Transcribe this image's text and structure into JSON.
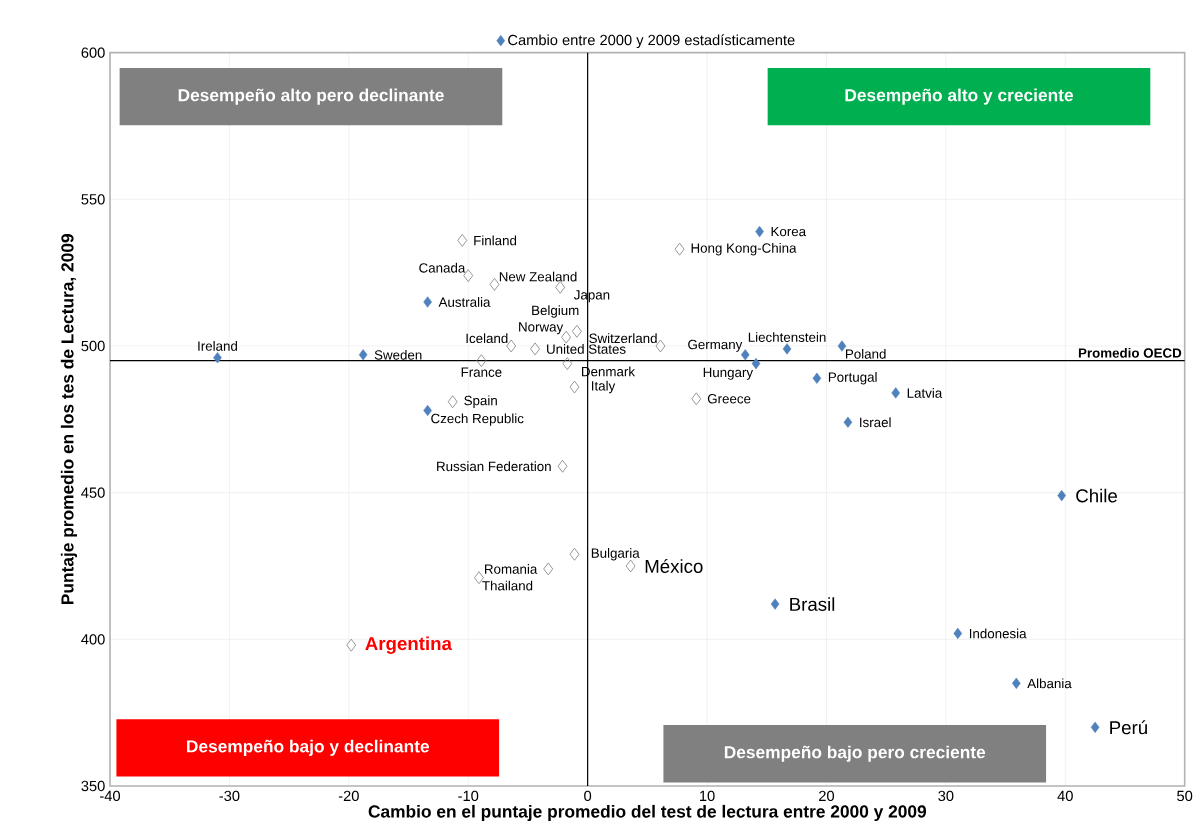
{
  "chart_data": {
    "type": "scatter",
    "xlabel": "Cambio en el puntaje promedio del test de lectura entre 2000 y 2009",
    "ylabel": "Puntaje promedio en los tes de Lectura, 2009",
    "series": [
      {
        "name": "Cambio entre 2000 y 2009 estadísticamente",
        "color": "#4f81bd",
        "x": [
          -31,
          -18.8,
          -13.4,
          -13.4,
          14.4,
          13.2,
          14.1,
          16.7,
          21.3,
          19.2,
          25.8,
          21.8,
          39.7,
          15.7,
          31.0,
          35.9,
          42.5
        ],
        "values": [
          496,
          497,
          515,
          478,
          539,
          497,
          494,
          499,
          500,
          489,
          484,
          474,
          449,
          412,
          402,
          385,
          370
        ]
      },
      {
        "color": "#7f7f7f",
        "x": [
          -10.5,
          -10.0,
          -7.8,
          -2.3,
          -0.9,
          -1.8,
          -6.4,
          -4.4,
          -8.9,
          -1.7,
          -1.1,
          -11.3,
          6.1,
          7.7,
          9.1,
          -2.1,
          -3.3,
          -1.1,
          -9.1,
          3.6,
          -19.8
        ],
        "values": [
          536,
          524,
          521,
          520,
          505,
          503,
          500,
          499,
          495,
          494,
          486,
          481,
          500,
          533,
          482,
          459,
          424,
          429,
          421,
          425,
          398
        ]
      }
    ],
    "xlim": [
      -40,
      50
    ],
    "xticks": [
      -40,
      -30,
      -20,
      -10,
      0,
      10,
      20,
      30,
      40,
      50
    ],
    "ylim": [
      350,
      600
    ],
    "yticks": [
      350,
      400,
      450,
      500,
      550,
      600
    ],
    "grid": true,
    "legend": "top",
    "marker": "diamond",
    "ref_lines": [
      {
        "axis": "x",
        "value": 0
      },
      {
        "axis": "y",
        "value": 495,
        "label": "Promedio OECD"
      }
    ],
    "annotations": [
      "Desempeño alto pero declinante",
      "Desempeño alto y creciente",
      "Desempeño bajo y declinante",
      "Desempeño bajo pero creciente",
      {
        "text": "Ireland",
        "x": -31,
        "y": 496
      },
      {
        "text": "Sweden",
        "x": -18.8,
        "y": 497
      },
      {
        "text": "Australia",
        "x": -13.4,
        "y": 515
      },
      {
        "text": "Czech Republic",
        "x": -13.4,
        "y": 478
      },
      {
        "text": "Korea",
        "x": 14.4,
        "y": 539
      },
      {
        "text": "Germany",
        "x": 13.2,
        "y": 497
      },
      {
        "text": "Hungary",
        "x": 14.1,
        "y": 494
      },
      {
        "text": "Liechtenstein",
        "x": 16.7,
        "y": 499
      },
      {
        "text": "Poland",
        "x": 21.3,
        "y": 500
      },
      {
        "text": "Portugal",
        "x": 19.2,
        "y": 489
      },
      {
        "text": "Latvia",
        "x": 25.8,
        "y": 484
      },
      {
        "text": "Israel",
        "x": 21.8,
        "y": 474
      },
      {
        "text": "Chile",
        "x": 39.7,
        "y": 449
      },
      {
        "text": "Brasil",
        "x": 15.7,
        "y": 412
      },
      {
        "text": "Indonesia",
        "x": 31.0,
        "y": 402
      },
      {
        "text": "Albania",
        "x": 35.9,
        "y": 385
      },
      {
        "text": "Perú",
        "x": 42.5,
        "y": 370
      },
      {
        "text": "Finland",
        "x": -10.5,
        "y": 536
      },
      {
        "text": "Canada",
        "x": -10.0,
        "y": 524
      },
      {
        "text": "New Zealand",
        "x": -7.8,
        "y": 521
      },
      {
        "text": "Japan",
        "x": -2.3,
        "y": 520
      },
      {
        "text": "Belgium",
        "x": -0.9,
        "y": 505
      },
      {
        "text": "Norway",
        "x": -1.8,
        "y": 503
      },
      {
        "text": "Iceland",
        "x": -6.4,
        "y": 500
      },
      {
        "text": "United States",
        "x": -4.4,
        "y": 499
      },
      {
        "text": "France",
        "x": -8.9,
        "y": 495
      },
      {
        "text": "Denmark",
        "x": -1.7,
        "y": 494
      },
      {
        "text": "Italy",
        "x": -1.1,
        "y": 486
      },
      {
        "text": "Spain",
        "x": -11.3,
        "y": 481
      },
      {
        "text": "Switzerland",
        "x": 6.1,
        "y": 500
      },
      {
        "text": "Hong Kong-China",
        "x": 7.7,
        "y": 533
      },
      {
        "text": "Greece",
        "x": 9.1,
        "y": 482
      },
      {
        "text": "Russian Federation",
        "x": -2.1,
        "y": 459
      },
      {
        "text": "Romania",
        "x": -3.3,
        "y": 424
      },
      {
        "text": "Bulgaria",
        "x": -1.1,
        "y": 429
      },
      {
        "text": "Thailand",
        "x": -9.1,
        "y": 421
      },
      {
        "text": "México",
        "x": 3.6,
        "y": 425
      },
      {
        "text": "Argentina",
        "x": -19.8,
        "y": 398
      }
    ]
  }
}
